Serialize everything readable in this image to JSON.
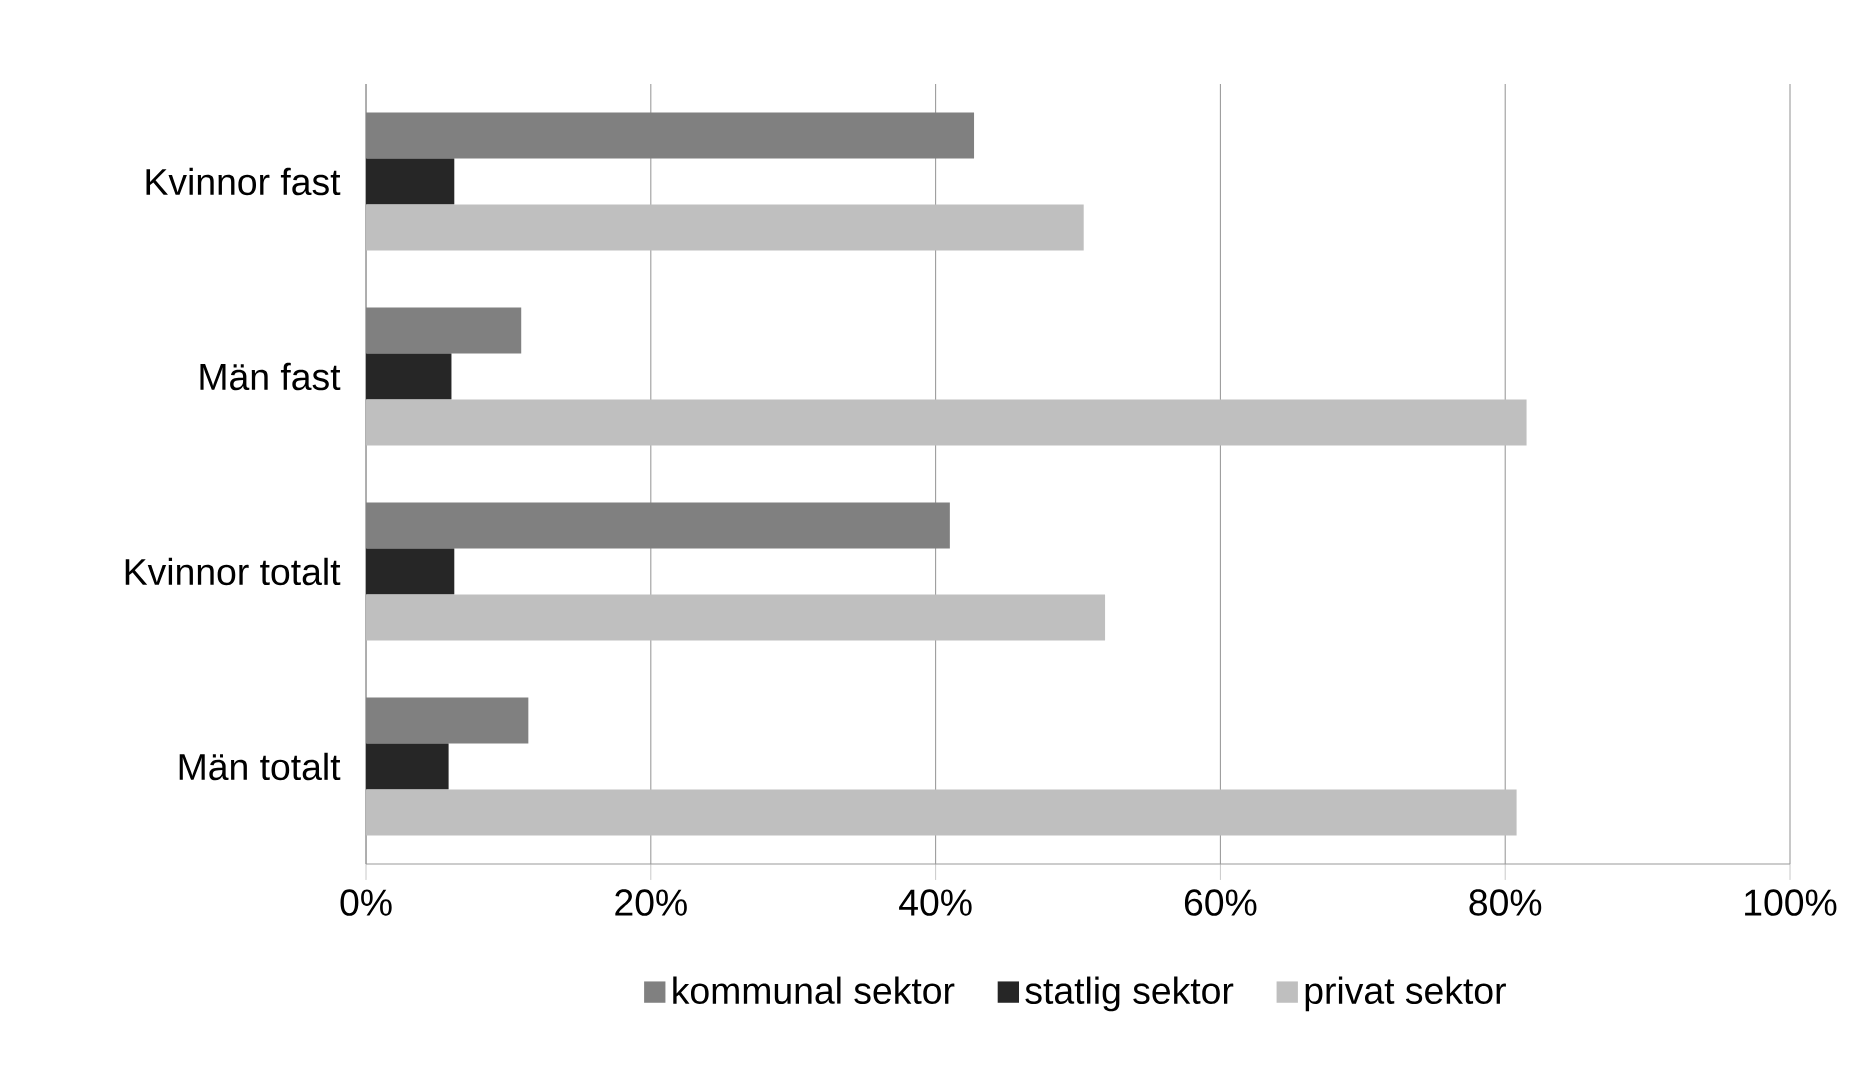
{
  "chart_data": {
    "type": "bar",
    "orientation": "horizontal",
    "categories": [
      "Kvinnor fast",
      "Män fast",
      "Kvinnor totalt",
      "Män totalt"
    ],
    "series": [
      {
        "name": "kommunal sektor",
        "color": "#808080",
        "values": [
          42.7,
          10.9,
          41.0,
          11.4
        ]
      },
      {
        "name": "statlig sektor",
        "color": "#262626",
        "values": [
          6.2,
          6.0,
          6.2,
          5.8
        ]
      },
      {
        "name": "privat sektor",
        "color": "#bfbfbf",
        "values": [
          50.4,
          81.5,
          51.9,
          80.8
        ]
      }
    ],
    "xlim": [
      0,
      100
    ],
    "xticks": [
      {
        "value": 0,
        "label": "0%"
      },
      {
        "value": 20,
        "label": "20%"
      },
      {
        "value": 40,
        "label": "40%"
      },
      {
        "value": 60,
        "label": "60%"
      },
      {
        "value": 80,
        "label": "80%"
      },
      {
        "value": 100,
        "label": "100%"
      }
    ],
    "grid": "x",
    "legend": "bottom"
  }
}
